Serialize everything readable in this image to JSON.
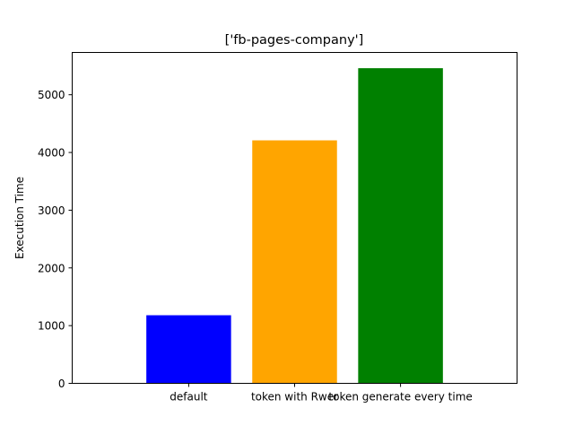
{
  "chart_data": {
    "type": "bar",
    "title": "['fb-pages-company']",
    "xlabel": "",
    "ylabel": "Execution Time",
    "categories": [
      "default",
      "token with Rwer",
      "token generate every time"
    ],
    "values": [
      1180,
      4210,
      5460
    ],
    "colors": [
      "#0000ff",
      "#ffa500",
      "#008000"
    ],
    "ylim": [
      0,
      5733
    ],
    "yticks": [
      0,
      1000,
      2000,
      3000,
      4000,
      5000
    ],
    "grid": false,
    "legend": "none"
  }
}
